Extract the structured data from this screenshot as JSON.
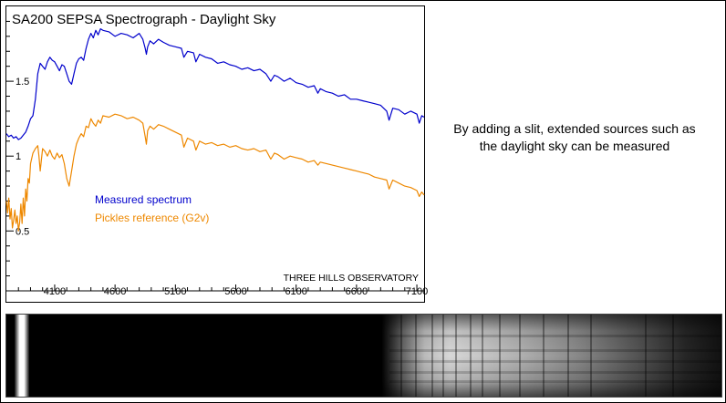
{
  "chart_data": {
    "type": "line",
    "title": "SA200 SEPSA Spectrograph - Daylight Sky",
    "xlabel": "",
    "ylabel": "",
    "xlim": [
      3700,
      7160
    ],
    "ylim": [
      0.1,
      2.0
    ],
    "x_ticks": [
      4100,
      4600,
      5100,
      5600,
      6100,
      6600,
      7100
    ],
    "y_ticks": [
      0.5,
      1,
      1.5
    ],
    "grid": false,
    "legend_position": "center-left",
    "annotation": "THREE HILLS OBSERVATORY",
    "series": [
      {
        "name": "Measured spectrum",
        "color": "#0000cc",
        "x": [
          3700,
          3720,
          3740,
          3760,
          3780,
          3800,
          3820,
          3840,
          3860,
          3880,
          3900,
          3920,
          3940,
          3960,
          3980,
          4000,
          4020,
          4040,
          4060,
          4080,
          4100,
          4120,
          4140,
          4160,
          4180,
          4200,
          4220,
          4240,
          4260,
          4280,
          4300,
          4320,
          4340,
          4360,
          4380,
          4400,
          4420,
          4440,
          4460,
          4480,
          4500,
          4550,
          4600,
          4650,
          4700,
          4750,
          4800,
          4830,
          4850,
          4860,
          4870,
          4890,
          4920,
          4960,
          5000,
          5050,
          5100,
          5150,
          5170,
          5200,
          5250,
          5270,
          5300,
          5350,
          5400,
          5450,
          5500,
          5550,
          5600,
          5650,
          5700,
          5750,
          5800,
          5850,
          5890,
          5920,
          5950,
          6000,
          6050,
          6100,
          6150,
          6200,
          6250,
          6280,
          6300,
          6350,
          6400,
          6450,
          6500,
          6550,
          6600,
          6650,
          6700,
          6750,
          6800,
          6850,
          6870,
          6900,
          6950,
          7000,
          7050,
          7100,
          7120,
          7140,
          7160
        ],
        "values": [
          1.15,
          1.13,
          1.14,
          1.12,
          1.13,
          1.11,
          1.12,
          1.14,
          1.16,
          1.2,
          1.25,
          1.27,
          1.38,
          1.55,
          1.62,
          1.6,
          1.58,
          1.63,
          1.66,
          1.64,
          1.63,
          1.6,
          1.57,
          1.61,
          1.6,
          1.55,
          1.5,
          1.48,
          1.55,
          1.62,
          1.65,
          1.66,
          1.64,
          1.72,
          1.78,
          1.82,
          1.79,
          1.84,
          1.81,
          1.85,
          1.84,
          1.83,
          1.8,
          1.82,
          1.81,
          1.79,
          1.82,
          1.78,
          1.72,
          1.68,
          1.73,
          1.77,
          1.75,
          1.78,
          1.76,
          1.74,
          1.73,
          1.72,
          1.66,
          1.7,
          1.69,
          1.63,
          1.68,
          1.66,
          1.65,
          1.62,
          1.63,
          1.61,
          1.6,
          1.58,
          1.59,
          1.57,
          1.58,
          1.55,
          1.5,
          1.54,
          1.53,
          1.5,
          1.52,
          1.49,
          1.48,
          1.46,
          1.47,
          1.42,
          1.45,
          1.43,
          1.42,
          1.4,
          1.41,
          1.38,
          1.38,
          1.37,
          1.36,
          1.35,
          1.34,
          1.3,
          1.24,
          1.32,
          1.31,
          1.28,
          1.3,
          1.28,
          1.22,
          1.27,
          1.26
        ]
      },
      {
        "name": "Pickles reference (G2v)",
        "color": "#ee8800",
        "x": [
          3700,
          3710,
          3720,
          3730,
          3740,
          3750,
          3760,
          3770,
          3780,
          3790,
          3800,
          3810,
          3820,
          3830,
          3840,
          3850,
          3860,
          3870,
          3880,
          3890,
          3900,
          3920,
          3940,
          3960,
          3970,
          3980,
          4000,
          4020,
          4040,
          4060,
          4080,
          4100,
          4120,
          4140,
          4160,
          4180,
          4200,
          4220,
          4240,
          4260,
          4280,
          4300,
          4320,
          4340,
          4360,
          4380,
          4400,
          4420,
          4440,
          4460,
          4480,
          4500,
          4550,
          4600,
          4650,
          4700,
          4750,
          4800,
          4830,
          4850,
          4860,
          4870,
          4890,
          4920,
          4960,
          5000,
          5050,
          5100,
          5150,
          5170,
          5200,
          5250,
          5270,
          5300,
          5350,
          5400,
          5450,
          5500,
          5550,
          5600,
          5650,
          5700,
          5750,
          5800,
          5850,
          5890,
          5920,
          5950,
          6000,
          6050,
          6100,
          6150,
          6200,
          6250,
          6280,
          6300,
          6350,
          6400,
          6450,
          6500,
          6550,
          6600,
          6650,
          6700,
          6750,
          6800,
          6850,
          6870,
          6900,
          6950,
          7000,
          7050,
          7100,
          7120,
          7140,
          7160
        ],
        "values": [
          0.7,
          0.62,
          0.72,
          0.58,
          0.65,
          0.52,
          0.57,
          0.64,
          0.55,
          0.6,
          0.5,
          0.56,
          0.68,
          0.55,
          0.72,
          0.6,
          0.78,
          0.7,
          0.85,
          0.82,
          0.95,
          1.02,
          1.05,
          1.07,
          1.0,
          0.9,
          1.05,
          1.03,
          1.0,
          1.04,
          1.0,
          0.98,
          1.02,
          0.99,
          1.01,
          0.95,
          0.85,
          0.8,
          0.9,
          1.0,
          1.08,
          1.12,
          1.15,
          1.13,
          1.2,
          1.19,
          1.25,
          1.22,
          1.2,
          1.24,
          1.22,
          1.27,
          1.26,
          1.28,
          1.27,
          1.25,
          1.26,
          1.24,
          1.22,
          1.13,
          1.08,
          1.17,
          1.2,
          1.18,
          1.21,
          1.2,
          1.18,
          1.16,
          1.14,
          1.06,
          1.12,
          1.1,
          1.04,
          1.1,
          1.08,
          1.09,
          1.07,
          1.08,
          1.06,
          1.07,
          1.05,
          1.04,
          1.05,
          1.03,
          1.04,
          0.98,
          1.02,
          1.01,
          0.98,
          1.0,
          0.99,
          0.98,
          0.96,
          0.97,
          0.94,
          0.96,
          0.95,
          0.94,
          0.93,
          0.92,
          0.91,
          0.9,
          0.89,
          0.88,
          0.86,
          0.85,
          0.84,
          0.78,
          0.84,
          0.82,
          0.8,
          0.79,
          0.77,
          0.73,
          0.76,
          0.74
        ]
      }
    ]
  },
  "caption": {
    "line1": "By adding a slit, extended sources such as",
    "line2": "the daylight sky can be measured"
  }
}
